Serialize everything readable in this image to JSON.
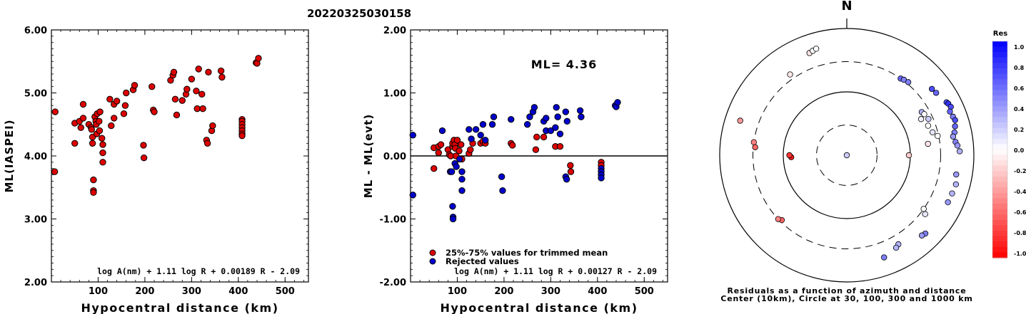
{
  "page_title": "20220325030158",
  "chart_data": [
    {
      "id": "ml_vs_distance",
      "type": "scatter",
      "title": "",
      "xlabel": "Hypocentral distance (km)",
      "ylabel": "ML(IASPEI)",
      "xlim": [
        0,
        550
      ],
      "ylim": [
        2.0,
        6.0
      ],
      "xticks": [
        "100",
        "200",
        "300",
        "400",
        "500"
      ],
      "yticks": [
        "2.00",
        "3.00",
        "4.00",
        "5.00",
        "6.00"
      ],
      "formula": "log A(nm) + 1.11 log R + 0.00189 R - 2.09",
      "marker_color": "#dd0000",
      "series": [
        {
          "points": [
            [
              8,
              4.7
            ],
            [
              7,
              3.75
            ],
            [
              50,
              4.52
            ],
            [
              50,
              4.2
            ],
            [
              60,
              4.55
            ],
            [
              63,
              4.45
            ],
            [
              68,
              4.6
            ],
            [
              68,
              4.82
            ],
            [
              80,
              4.5
            ],
            [
              85,
              4.45
            ],
            [
              86,
              4.42
            ],
            [
              88,
              4.2
            ],
            [
              88,
              4.3
            ],
            [
              90,
              3.62
            ],
            [
              90,
              3.45
            ],
            [
              90,
              3.42
            ],
            [
              93,
              4.62
            ],
            [
              95,
              4.55
            ],
            [
              96,
              4.5
            ],
            [
              97,
              4.35
            ],
            [
              98,
              4.67
            ],
            [
              102,
              4.55
            ],
            [
              103,
              4.4
            ],
            [
              104,
              4.7
            ],
            [
              108,
              4.28
            ],
            [
              110,
              4.18
            ],
            [
              110,
              4.05
            ],
            [
              110,
              3.9
            ],
            [
              125,
              4.9
            ],
            [
              128,
              4.48
            ],
            [
              134,
              4.6
            ],
            [
              134,
              4.82
            ],
            [
              140,
              4.87
            ],
            [
              155,
              4.67
            ],
            [
              158,
              4.8
            ],
            [
              160,
              5.0
            ],
            [
              175,
              5.05
            ],
            [
              178,
              5.12
            ],
            [
              197,
              4.17
            ],
            [
              198,
              3.97
            ],
            [
              215,
              5.1
            ],
            [
              218,
              4.73
            ],
            [
              220,
              4.7
            ],
            [
              255,
              5.2
            ],
            [
              260,
              5.28
            ],
            [
              262,
              5.33
            ],
            [
              265,
              4.9
            ],
            [
              268,
              4.65
            ],
            [
              280,
              4.88
            ],
            [
              288,
              4.98
            ],
            [
              290,
              5.06
            ],
            [
              300,
              5.22
            ],
            [
              310,
              5.03
            ],
            [
              312,
              4.75
            ],
            [
              315,
              5.38
            ],
            [
              322,
              4.98
            ],
            [
              324,
              4.75
            ],
            [
              332,
              4.25
            ],
            [
              334,
              4.2
            ],
            [
              336,
              5.33
            ],
            [
              343,
              4.4
            ],
            [
              345,
              4.48
            ],
            [
              363,
              5.35
            ],
            [
              365,
              5.25
            ],
            [
              408,
              4.58
            ],
            [
              408,
              4.55
            ],
            [
              408,
              4.5
            ],
            [
              408,
              4.45
            ],
            [
              408,
              4.4
            ],
            [
              408,
              4.35
            ],
            [
              408,
              4.32
            ],
            [
              438,
              5.48
            ],
            [
              440,
              5.47
            ],
            [
              443,
              5.55
            ]
          ]
        }
      ]
    },
    {
      "id": "residual_vs_distance",
      "type": "scatter",
      "title": "",
      "xlabel": "Hypocentral distance (km)",
      "ylabel": "ML - ML(evt)",
      "xlim": [
        0,
        550
      ],
      "ylim": [
        -2.0,
        2.0
      ],
      "xticks": [
        "100",
        "200",
        "300",
        "400",
        "500"
      ],
      "yticks": [
        "-2.00",
        "-1.00",
        "0.00",
        "1.00",
        "2.00"
      ],
      "annotation": "ML= 4.36",
      "formula": "log A(nm) + 1.11 log R + 0.00127 R - 2.09",
      "legend": {
        "position": "bottom-left",
        "entries": [
          {
            "label": "25%-75% values for trimmed mean",
            "color": "#dd0000"
          },
          {
            "label": "Rejected values",
            "color": "#0000cc"
          }
        ]
      },
      "series": [
        {
          "name": "25%-75% values for trimmed mean",
          "color": "#dd0000",
          "points": [
            [
              50,
              0.13
            ],
            [
              50,
              -0.2
            ],
            [
              60,
              0.15
            ],
            [
              60,
              0.05
            ],
            [
              65,
              0.18
            ],
            [
              80,
              0.1
            ],
            [
              83,
              0.02
            ],
            [
              86,
              0.0
            ],
            [
              90,
              0.15
            ],
            [
              90,
              0.2
            ],
            [
              93,
              0.25
            ],
            [
              95,
              0.18
            ],
            [
              96,
              0.12
            ],
            [
              97,
              0.0
            ],
            [
              100,
              0.25
            ],
            [
              104,
              0.08
            ],
            [
              108,
              0.18
            ],
            [
              110,
              -0.05
            ],
            [
              125,
              0.04
            ],
            [
              128,
              0.1
            ],
            [
              133,
              0.2
            ],
            [
              150,
              0.2
            ],
            [
              155,
              0.23
            ],
            [
              160,
              0.2
            ],
            [
              215,
              0.2
            ],
            [
              218,
              0.17
            ],
            [
              268,
              0.1
            ],
            [
              270,
              0.3
            ],
            [
              285,
              0.3
            ],
            [
              310,
              0.15
            ],
            [
              320,
              0.15
            ],
            [
              342,
              -0.15
            ],
            [
              343,
              -0.25
            ],
            [
              408,
              -0.1
            ],
            [
              408,
              -0.15
            ]
          ]
        },
        {
          "name": "Rejected values",
          "color": "#0000cc",
          "points": [
            [
              5,
              0.33
            ],
            [
              5,
              -0.62
            ],
            [
              68,
              0.4
            ],
            [
              85,
              -0.25
            ],
            [
              88,
              -0.25
            ],
            [
              90,
              -0.8
            ],
            [
              91,
              -0.97
            ],
            [
              91,
              -1.0
            ],
            [
              95,
              -0.12
            ],
            [
              98,
              -0.17
            ],
            [
              105,
              -0.05
            ],
            [
              110,
              -0.25
            ],
            [
              110,
              -0.37
            ],
            [
              110,
              -0.55
            ],
            [
              125,
              0.42
            ],
            [
              130,
              0.27
            ],
            [
              140,
              0.42
            ],
            [
              150,
              0.33
            ],
            [
              155,
              0.5
            ],
            [
              160,
              0.25
            ],
            [
              175,
              0.5
            ],
            [
              178,
              0.62
            ],
            [
              195,
              -0.33
            ],
            [
              197,
              -0.55
            ],
            [
              215,
              0.58
            ],
            [
              250,
              0.5
            ],
            [
              255,
              0.62
            ],
            [
              262,
              0.7
            ],
            [
              265,
              0.77
            ],
            [
              285,
              0.55
            ],
            [
              290,
              0.4
            ],
            [
              290,
              0.6
            ],
            [
              300,
              0.4
            ],
            [
              310,
              0.45
            ],
            [
              312,
              0.77
            ],
            [
              315,
              0.62
            ],
            [
              320,
              0.35
            ],
            [
              332,
              0.7
            ],
            [
              335,
              0.55
            ],
            [
              332,
              -0.33
            ],
            [
              334,
              -0.37
            ],
            [
              363,
              0.72
            ],
            [
              365,
              0.62
            ],
            [
              408,
              -0.2
            ],
            [
              408,
              -0.25
            ],
            [
              408,
              -0.3
            ],
            [
              408,
              -0.35
            ],
            [
              438,
              0.8
            ],
            [
              440,
              0.78
            ],
            [
              443,
              0.85
            ]
          ]
        }
      ]
    },
    {
      "id": "azimuth_residual_map",
      "type": "scatter",
      "title": "N",
      "caption_line1": "Residuals as a function of azimuth and distance",
      "caption_line2": "Center (10km), Circle at 30, 100, 300 and 1000 km",
      "colorbar_title": "Res",
      "colorbar_ticks": [
        "1.0",
        "0.8",
        "0.6",
        "0.4",
        "0.2",
        "0.0",
        "-0.2",
        "-0.4",
        "-0.6",
        "-0.8",
        "-1.0"
      ],
      "color_scale": {
        "negative": "#ff0000",
        "zero": "#ffffff",
        "positive": "#0000ff",
        "range": [
          -1.0,
          1.0
        ]
      },
      "stations": [
        {
          "az": 0,
          "dist": 10,
          "res": 0.2
        },
        {
          "az": 35,
          "dist": 300,
          "res": 0.6
        },
        {
          "az": 37,
          "dist": 310,
          "res": 0.5
        },
        {
          "az": 40,
          "dist": 320,
          "res": 0.5
        },
        {
          "az": 52,
          "dist": 500,
          "res": 0.7
        },
        {
          "az": 55,
          "dist": 520,
          "res": 0.6
        },
        {
          "az": 62,
          "dist": 600,
          "res": 0.7
        },
        {
          "az": 63,
          "dist": 620,
          "res": 0.8
        },
        {
          "az": 65,
          "dist": 640,
          "res": 0.7
        },
        {
          "az": 67,
          "dist": 580,
          "res": 0.6
        },
        {
          "az": 70,
          "dist": 600,
          "res": 0.5
        },
        {
          "az": 72,
          "dist": 620,
          "res": 0.7
        },
        {
          "az": 75,
          "dist": 580,
          "res": 0.6
        },
        {
          "az": 78,
          "dist": 540,
          "res": 0.5
        },
        {
          "az": 80,
          "dist": 500,
          "res": 0.4
        },
        {
          "az": 83,
          "dist": 530,
          "res": 0.5
        },
        {
          "az": 85,
          "dist": 560,
          "res": 0.4
        },
        {
          "az": 88,
          "dist": 600,
          "res": 0.3
        },
        {
          "az": 60,
          "dist": 230,
          "res": 0.3
        },
        {
          "az": 62,
          "dist": 240,
          "res": 0.0
        },
        {
          "az": 64,
          "dist": 200,
          "res": 0.05
        },
        {
          "az": 66,
          "dist": 255,
          "res": 0.2
        },
        {
          "az": 70,
          "dist": 230,
          "res": 0.0
        },
        {
          "az": 75,
          "dist": 250,
          "res": 0.1
        },
        {
          "az": 78,
          "dist": 290,
          "res": 0.0
        },
        {
          "az": 82,
          "dist": 195,
          "res": -0.1
        },
        {
          "az": 90,
          "dist": 95,
          "res": -0.2
        },
        {
          "az": 100,
          "dist": 560,
          "res": 0.4
        },
        {
          "az": 105,
          "dist": 600,
          "res": 0.3
        },
        {
          "az": 110,
          "dist": 580,
          "res": 0.3
        },
        {
          "az": 115,
          "dist": 570,
          "res": 0.4
        },
        {
          "az": 125,
          "dist": 300,
          "res": 0.0
        },
        {
          "az": 127,
          "dist": 350,
          "res": 0.1
        },
        {
          "az": 135,
          "dist": 560,
          "res": 0.5
        },
        {
          "az": 137,
          "dist": 540,
          "res": 0.4
        },
        {
          "az": 150,
          "dist": 420,
          "res": 0.3
        },
        {
          "az": 152,
          "dist": 450,
          "res": 0.3
        },
        {
          "az": 160,
          "dist": 520,
          "res": 0.5
        },
        {
          "az": 225,
          "dist": 280,
          "res": -0.6
        },
        {
          "az": 227,
          "dist": 300,
          "res": -0.5
        },
        {
          "az": 268,
          "dist": 75,
          "res": -0.9
        },
        {
          "az": 270,
          "dist": 80,
          "res": -0.8
        },
        {
          "az": 275,
          "dist": 280,
          "res": -0.6
        },
        {
          "az": 278,
          "dist": 300,
          "res": -0.5
        },
        {
          "az": 288,
          "dist": 580,
          "res": -0.4
        },
        {
          "az": 325,
          "dist": 360,
          "res": -0.1
        },
        {
          "az": 340,
          "dist": 520,
          "res": -0.1
        },
        {
          "az": 342,
          "dist": 540,
          "res": 0.0
        },
        {
          "az": 344,
          "dist": 560,
          "res": 0.0
        }
      ]
    }
  ]
}
